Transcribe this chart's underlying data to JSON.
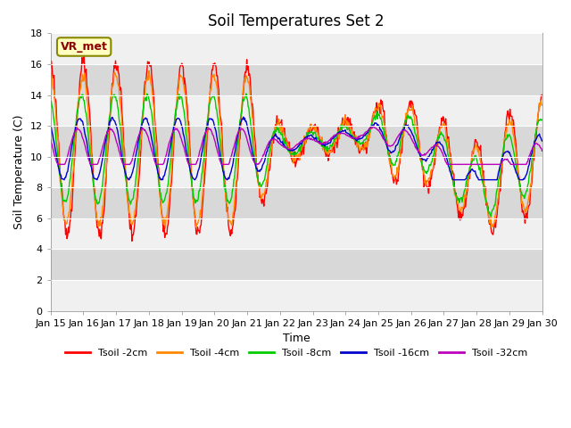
{
  "title": "Soil Temperatures Set 2",
  "xlabel": "Time",
  "ylabel": "Soil Temperature (C)",
  "ylim": [
    0,
    18
  ],
  "series_colors": [
    "#FF0000",
    "#FF8800",
    "#00CC00",
    "#0000CC",
    "#BB00BB"
  ],
  "series_labels": [
    "Tsoil -2cm",
    "Tsoil -4cm",
    "Tsoil -8cm",
    "Tsoil -16cm",
    "Tsoil -32cm"
  ],
  "vr_label": "VR_met",
  "background_color": "#FFFFFF",
  "plot_bg_color": "#D8D8D8",
  "white_band_color": "#F0F0F0",
  "title_fontsize": 12,
  "axis_label_fontsize": 9,
  "tick_fontsize": 8,
  "legend_fontsize": 8
}
